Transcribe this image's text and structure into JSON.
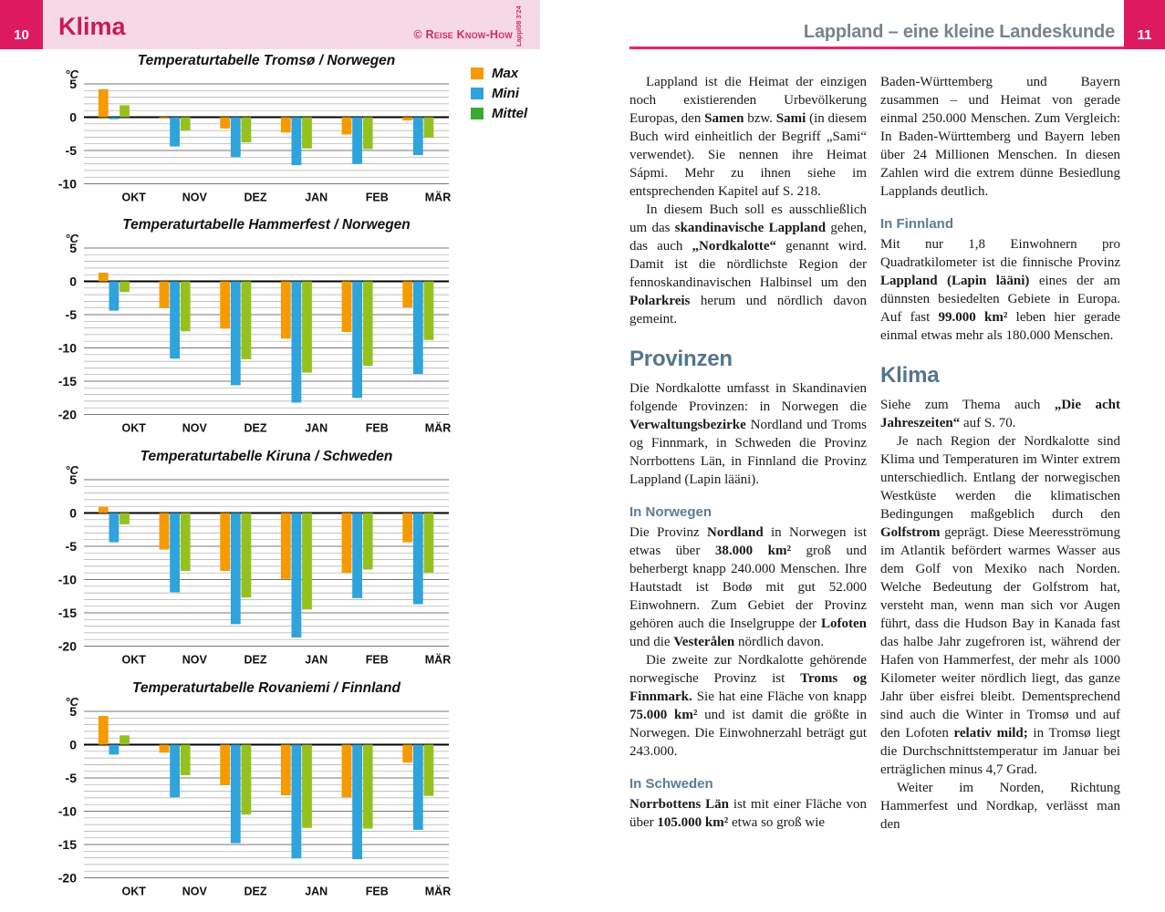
{
  "pages": {
    "left": {
      "page_number": "10",
      "header_title": "Klima",
      "credit": "© Reise Know-How",
      "credit_rotated": "Lappl08 3'24"
    },
    "right": {
      "page_number": "11",
      "header_title": "Lappland – eine kleine Landeskunde",
      "col1": {
        "p1": "Lappland ist die Heimat der einzigen noch existierenden Urbevölkerung Europas, den **Samen** bzw. **Sami** (in diesem Buch wird einheitlich der Begriff „Sami“ verwendet). Sie nennen ihre Heimat Sápmi. Mehr zu ihnen siehe im entsprechenden Kapitel auf S. 218.",
        "p2": "In diesem Buch soll es ausschließlich um das **skandinavische Lappland** gehen, das auch **„Nordkalotte“** genannt wird. Damit ist die nördlichste Region der fennoskandinavischen Halbinsel um den **Polarkreis** herum und nördlich davon gemeint.",
        "provinzen_heading": "Provinzen",
        "p3": "Die Nordkalotte umfasst in Skandinavien folgende Provinzen: in Norwegen die **Verwaltungsbezirke** Nordland und Troms og Finnmark, in Schweden die Provinz Norrbottens Län, in Finnland die Provinz Lappland (Lapin lääni).",
        "in_norwegen_heading": "In Norwegen",
        "p4": "Die Provinz **Nordland** in Norwegen ist etwas über **38.000 km²** groß und beherbergt knapp 240.000 Menschen. Ihre Hautstadt ist Bodø mit gut 52.000 Einwohnern. Zum Gebiet der Provinz gehören auch die Inselgruppe der **Lofoten** und die **Vesterålen** nördlich davon.",
        "p5": "Die zweite zur Nordkalotte gehörende norwegische Provinz ist **Troms og Finnmark.** Sie hat eine Fläche von knapp **75.000 km²** und ist damit die größte in Norwegen. Die Einwohnerzahl beträgt gut 243.000.",
        "in_schweden_heading": "In Schweden",
        "p6": "**Norrbottens Län** ist mit einer Fläche von über **105.000 km²** etwa so groß wie"
      },
      "col2": {
        "p1": "Baden-Württemberg und Bayern zusammen – und Heimat von gerade einmal 250.000 Menschen. Zum Vergleich: In Baden-Württemberg und Bayern leben über 24 Millionen Menschen. In diesen Zahlen wird die extrem dünne Besiedlung Lapplands deutlich.",
        "in_finnland_heading": "In Finnland",
        "p2": "Mit nur 1,8 Einwohnern pro Quadratkilometer ist die finnische Provinz **Lappland (Lapin lääni)** eines der am dünnsten besiedelten Gebiete in Europa. Auf fast **99.000 km²** leben hier gerade einmal etwas mehr als 180.000 Menschen.",
        "klima_heading": "Klima",
        "p3": "Siehe zum Thema auch **„Die acht Jahreszeiten“** auf S. 70.",
        "p4": "Je nach Region der Nordkalotte sind Klima und Temperaturen im Winter extrem unterschiedlich. Entlang der norwegischen Westküste werden die klimatischen Bedingungen maßgeblich durch den **Golfstrom** geprägt. Diese Meeresströmung im Atlantik befördert warmes Wasser aus dem Golf von Mexiko nach Norden. Welche Bedeutung der Golfstrom hat, versteht man, wenn man sich vor Augen führt, dass die Hudson Bay in Kanada fast das halbe Jahr zugefroren ist, während der Hafen von Hammerfest, der mehr als 1000 Kilometer weiter nördlich liegt, das ganze Jahr über eisfrei bleibt. Dementsprechend sind auch die Winter in Tromsø und auf den Lofoten **relativ mild;** in Tromsø liegt die Durchschnittstemperatur im Januar bei erträglichen minus 4,7 Grad.",
        "p5": "Weiter im Norden, Richtung Hammerfest und Nordkap, verlässt man den"
      }
    }
  },
  "legend": {
    "items": [
      {
        "label": "Max",
        "color": "#f59b00"
      },
      {
        "label": "Mini",
        "color": "#2fa3dc"
      },
      {
        "label": "Mittel",
        "color": "#3aaa35"
      }
    ]
  },
  "colors": {
    "brand_pink": "#dd1a60",
    "band_pink": "#f6d9e7",
    "title_magenta": "#c61a5b",
    "heading_slate": "#54758c",
    "bar_max": "#f59b00",
    "bar_mini": "#2fa3dc",
    "bar_mittel": "#95c11f"
  },
  "chart_data": [
    {
      "type": "bar",
      "title": "Temperaturtabelle Tromsø / Norwegen",
      "ylabel": "°C",
      "ylim": [
        5,
        -10
      ],
      "grid": true,
      "legend_position": "right-of-chart-1",
      "categories": [
        "OKT",
        "NOV",
        "DEZ",
        "JAN",
        "FEB",
        "MÄR"
      ],
      "series": [
        {
          "name": "Max",
          "values": [
            4.2,
            -0.2,
            -1.7,
            -2.3,
            -2.6,
            -0.5
          ]
        },
        {
          "name": "Mini",
          "values": [
            -0.3,
            -4.4,
            -6.0,
            -7.2,
            -7.0,
            -5.7
          ]
        },
        {
          "name": "Mittel",
          "values": [
            1.8,
            -2.0,
            -3.8,
            -4.7,
            -4.8,
            -3.1
          ]
        }
      ]
    },
    {
      "type": "bar",
      "title": "Temperaturtabelle Hammerfest / Norwegen",
      "ylabel": "°C",
      "ylim": [
        5,
        -20
      ],
      "grid": true,
      "categories": [
        "OKT",
        "NOV",
        "DEZ",
        "JAN",
        "FEB",
        "MÄR"
      ],
      "series": [
        {
          "name": "Max",
          "values": [
            1.3,
            -4.0,
            -7.1,
            -8.6,
            -7.6,
            -3.9
          ]
        },
        {
          "name": "Mini",
          "values": [
            -4.4,
            -11.6,
            -15.6,
            -18.2,
            -17.5,
            -13.9
          ]
        },
        {
          "name": "Mittel",
          "values": [
            -1.6,
            -7.5,
            -11.7,
            -13.7,
            -12.7,
            -8.8
          ]
        }
      ]
    },
    {
      "type": "bar",
      "title": "Temperaturtabelle Kiruna / Schweden",
      "ylabel": "°C",
      "ylim": [
        5,
        -20
      ],
      "grid": true,
      "categories": [
        "OKT",
        "NOV",
        "DEZ",
        "JAN",
        "FEB",
        "MÄR"
      ],
      "series": [
        {
          "name": "Max",
          "values": [
            0.9,
            -5.5,
            -8.7,
            -9.9,
            -9.0,
            -4.4
          ]
        },
        {
          "name": "Mini",
          "values": [
            -4.4,
            -11.9,
            -16.7,
            -18.7,
            -12.8,
            -13.7
          ]
        },
        {
          "name": "Mittel",
          "values": [
            -1.7,
            -8.7,
            -12.7,
            -14.5,
            -8.5,
            -9.0
          ]
        }
      ]
    },
    {
      "type": "bar",
      "title": "Temperaturtabelle Rovaniemi / Finnland",
      "ylabel": "°C",
      "ylim": [
        5,
        -20
      ],
      "grid": true,
      "categories": [
        "OKT",
        "NOV",
        "DEZ",
        "JAN",
        "FEB",
        "MÄR"
      ],
      "series": [
        {
          "name": "Max",
          "values": [
            4.3,
            -1.2,
            -6.1,
            -7.6,
            -7.9,
            -2.7
          ]
        },
        {
          "name": "Mini",
          "values": [
            -1.5,
            -7.9,
            -14.8,
            -17.1,
            -17.2,
            -12.8
          ]
        },
        {
          "name": "Mittel",
          "values": [
            1.4,
            -4.6,
            -10.5,
            -12.5,
            -12.6,
            -7.7
          ]
        }
      ]
    }
  ]
}
